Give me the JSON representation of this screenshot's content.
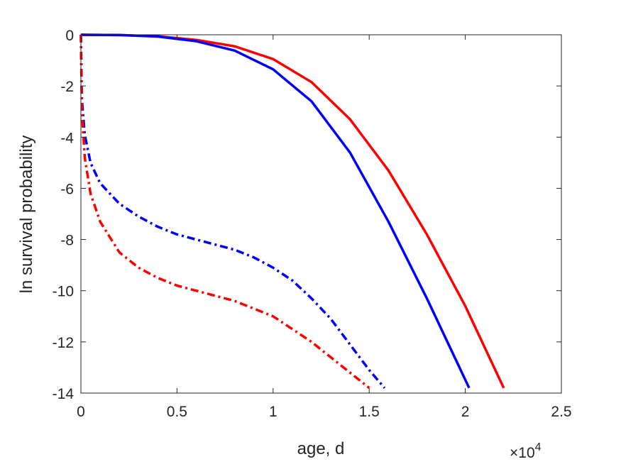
{
  "chart_data": {
    "type": "line",
    "title": "",
    "xlabel": "age, d",
    "ylabel": "ln survival probability",
    "x_exponent_label": "×10",
    "x_exponent_power": "4",
    "xlim": [
      0,
      25000
    ],
    "ylim": [
      -14,
      0
    ],
    "x_ticks": [
      0,
      5000,
      10000,
      15000,
      20000,
      25000
    ],
    "x_tick_labels": [
      "0",
      "0.5",
      "1",
      "1.5",
      "2",
      "2.5"
    ],
    "y_ticks": [
      0,
      -2,
      -4,
      -6,
      -8,
      -10,
      -12,
      -14
    ],
    "y_tick_labels": [
      "0",
      "-2",
      "-4",
      "-6",
      "-8",
      "-10",
      "-12",
      "-14"
    ],
    "grid": false,
    "legend": "none",
    "series": [
      {
        "color": "#ff0000",
        "style": "solid",
        "x": [
          0,
          2000,
          4000,
          6000,
          8000,
          10000,
          12000,
          14000,
          16000,
          18000,
          20000,
          22000
        ],
        "y": [
          0,
          -0.01,
          -0.06,
          -0.2,
          -0.45,
          -0.95,
          -1.85,
          -3.3,
          -5.3,
          -7.8,
          -10.6,
          -13.8
        ]
      },
      {
        "color": "#0000ff",
        "style": "solid",
        "x": [
          0,
          2000,
          4000,
          6000,
          8000,
          10000,
          12000,
          14000,
          16000,
          18000,
          20200
        ],
        "y": [
          0,
          -0.01,
          -0.07,
          -0.25,
          -0.62,
          -1.35,
          -2.6,
          -4.6,
          -7.3,
          -10.3,
          -13.8
        ]
      },
      {
        "color": "#0000ff",
        "style": "dashdot",
        "x": [
          0,
          50,
          200,
          500,
          1000,
          2000,
          3000,
          4000,
          5000,
          6000,
          7000,
          8000,
          9000,
          10000,
          11000,
          12000,
          13000,
          14000,
          15000,
          15800
        ],
        "y": [
          0,
          -2.5,
          -3.9,
          -5.0,
          -5.8,
          -6.6,
          -7.1,
          -7.5,
          -7.8,
          -8.0,
          -8.2,
          -8.4,
          -8.7,
          -9.1,
          -9.6,
          -10.3,
          -11.1,
          -12.1,
          -13.1,
          -13.8
        ]
      },
      {
        "color": "#ff0000",
        "style": "dashdot",
        "x": [
          0,
          50,
          200,
          500,
          1000,
          2000,
          3000,
          4000,
          5000,
          6000,
          7000,
          8000,
          9000,
          10000,
          11000,
          12000,
          13000,
          14000,
          15000
        ],
        "y": [
          0,
          -3.0,
          -4.8,
          -6.2,
          -7.3,
          -8.5,
          -9.1,
          -9.5,
          -9.8,
          -10.0,
          -10.2,
          -10.4,
          -10.7,
          -11.0,
          -11.5,
          -12.0,
          -12.6,
          -13.2,
          -13.8
        ]
      }
    ]
  }
}
